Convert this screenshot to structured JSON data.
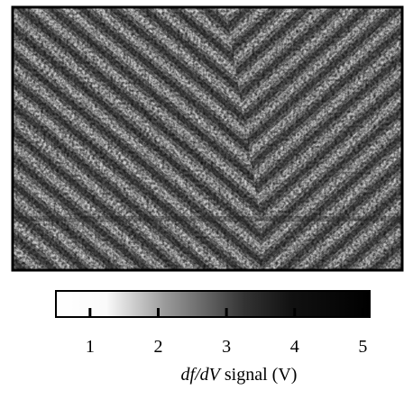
{
  "colorbar": {
    "lim": [
      0.5,
      5.1
    ],
    "ticks": [
      1,
      2,
      3,
      4,
      5
    ],
    "label": {
      "italic": "df/dV",
      "text": "signal (V)"
    }
  }
}
